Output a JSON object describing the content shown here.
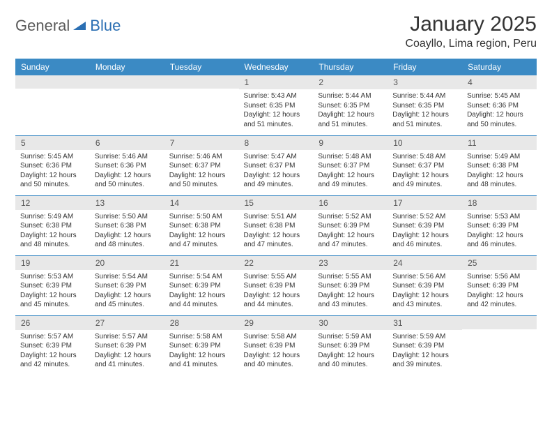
{
  "brand": {
    "word1": "General",
    "word2": "Blue"
  },
  "title": "January 2025",
  "location": "Coayllo, Lima region, Peru",
  "colors": {
    "header_bg": "#3b8ac4",
    "header_text": "#ffffff",
    "daynum_bg": "#e8e8e8",
    "row_border": "#3b8ac4",
    "brand_gray": "#5a5a5a",
    "brand_blue": "#2b6fb3"
  },
  "weekdays": [
    "Sunday",
    "Monday",
    "Tuesday",
    "Wednesday",
    "Thursday",
    "Friday",
    "Saturday"
  ],
  "weeks": [
    [
      {
        "day": "",
        "sunrise": "",
        "sunset": "",
        "daylight": ""
      },
      {
        "day": "",
        "sunrise": "",
        "sunset": "",
        "daylight": ""
      },
      {
        "day": "",
        "sunrise": "",
        "sunset": "",
        "daylight": ""
      },
      {
        "day": "1",
        "sunrise": "Sunrise: 5:43 AM",
        "sunset": "Sunset: 6:35 PM",
        "daylight": "Daylight: 12 hours and 51 minutes."
      },
      {
        "day": "2",
        "sunrise": "Sunrise: 5:44 AM",
        "sunset": "Sunset: 6:35 PM",
        "daylight": "Daylight: 12 hours and 51 minutes."
      },
      {
        "day": "3",
        "sunrise": "Sunrise: 5:44 AM",
        "sunset": "Sunset: 6:35 PM",
        "daylight": "Daylight: 12 hours and 51 minutes."
      },
      {
        "day": "4",
        "sunrise": "Sunrise: 5:45 AM",
        "sunset": "Sunset: 6:36 PM",
        "daylight": "Daylight: 12 hours and 50 minutes."
      }
    ],
    [
      {
        "day": "5",
        "sunrise": "Sunrise: 5:45 AM",
        "sunset": "Sunset: 6:36 PM",
        "daylight": "Daylight: 12 hours and 50 minutes."
      },
      {
        "day": "6",
        "sunrise": "Sunrise: 5:46 AM",
        "sunset": "Sunset: 6:36 PM",
        "daylight": "Daylight: 12 hours and 50 minutes."
      },
      {
        "day": "7",
        "sunrise": "Sunrise: 5:46 AM",
        "sunset": "Sunset: 6:37 PM",
        "daylight": "Daylight: 12 hours and 50 minutes."
      },
      {
        "day": "8",
        "sunrise": "Sunrise: 5:47 AM",
        "sunset": "Sunset: 6:37 PM",
        "daylight": "Daylight: 12 hours and 49 minutes."
      },
      {
        "day": "9",
        "sunrise": "Sunrise: 5:48 AM",
        "sunset": "Sunset: 6:37 PM",
        "daylight": "Daylight: 12 hours and 49 minutes."
      },
      {
        "day": "10",
        "sunrise": "Sunrise: 5:48 AM",
        "sunset": "Sunset: 6:37 PM",
        "daylight": "Daylight: 12 hours and 49 minutes."
      },
      {
        "day": "11",
        "sunrise": "Sunrise: 5:49 AM",
        "sunset": "Sunset: 6:38 PM",
        "daylight": "Daylight: 12 hours and 48 minutes."
      }
    ],
    [
      {
        "day": "12",
        "sunrise": "Sunrise: 5:49 AM",
        "sunset": "Sunset: 6:38 PM",
        "daylight": "Daylight: 12 hours and 48 minutes."
      },
      {
        "day": "13",
        "sunrise": "Sunrise: 5:50 AM",
        "sunset": "Sunset: 6:38 PM",
        "daylight": "Daylight: 12 hours and 48 minutes."
      },
      {
        "day": "14",
        "sunrise": "Sunrise: 5:50 AM",
        "sunset": "Sunset: 6:38 PM",
        "daylight": "Daylight: 12 hours and 47 minutes."
      },
      {
        "day": "15",
        "sunrise": "Sunrise: 5:51 AM",
        "sunset": "Sunset: 6:38 PM",
        "daylight": "Daylight: 12 hours and 47 minutes."
      },
      {
        "day": "16",
        "sunrise": "Sunrise: 5:52 AM",
        "sunset": "Sunset: 6:39 PM",
        "daylight": "Daylight: 12 hours and 47 minutes."
      },
      {
        "day": "17",
        "sunrise": "Sunrise: 5:52 AM",
        "sunset": "Sunset: 6:39 PM",
        "daylight": "Daylight: 12 hours and 46 minutes."
      },
      {
        "day": "18",
        "sunrise": "Sunrise: 5:53 AM",
        "sunset": "Sunset: 6:39 PM",
        "daylight": "Daylight: 12 hours and 46 minutes."
      }
    ],
    [
      {
        "day": "19",
        "sunrise": "Sunrise: 5:53 AM",
        "sunset": "Sunset: 6:39 PM",
        "daylight": "Daylight: 12 hours and 45 minutes."
      },
      {
        "day": "20",
        "sunrise": "Sunrise: 5:54 AM",
        "sunset": "Sunset: 6:39 PM",
        "daylight": "Daylight: 12 hours and 45 minutes."
      },
      {
        "day": "21",
        "sunrise": "Sunrise: 5:54 AM",
        "sunset": "Sunset: 6:39 PM",
        "daylight": "Daylight: 12 hours and 44 minutes."
      },
      {
        "day": "22",
        "sunrise": "Sunrise: 5:55 AM",
        "sunset": "Sunset: 6:39 PM",
        "daylight": "Daylight: 12 hours and 44 minutes."
      },
      {
        "day": "23",
        "sunrise": "Sunrise: 5:55 AM",
        "sunset": "Sunset: 6:39 PM",
        "daylight": "Daylight: 12 hours and 43 minutes."
      },
      {
        "day": "24",
        "sunrise": "Sunrise: 5:56 AM",
        "sunset": "Sunset: 6:39 PM",
        "daylight": "Daylight: 12 hours and 43 minutes."
      },
      {
        "day": "25",
        "sunrise": "Sunrise: 5:56 AM",
        "sunset": "Sunset: 6:39 PM",
        "daylight": "Daylight: 12 hours and 42 minutes."
      }
    ],
    [
      {
        "day": "26",
        "sunrise": "Sunrise: 5:57 AM",
        "sunset": "Sunset: 6:39 PM",
        "daylight": "Daylight: 12 hours and 42 minutes."
      },
      {
        "day": "27",
        "sunrise": "Sunrise: 5:57 AM",
        "sunset": "Sunset: 6:39 PM",
        "daylight": "Daylight: 12 hours and 41 minutes."
      },
      {
        "day": "28",
        "sunrise": "Sunrise: 5:58 AM",
        "sunset": "Sunset: 6:39 PM",
        "daylight": "Daylight: 12 hours and 41 minutes."
      },
      {
        "day": "29",
        "sunrise": "Sunrise: 5:58 AM",
        "sunset": "Sunset: 6:39 PM",
        "daylight": "Daylight: 12 hours and 40 minutes."
      },
      {
        "day": "30",
        "sunrise": "Sunrise: 5:59 AM",
        "sunset": "Sunset: 6:39 PM",
        "daylight": "Daylight: 12 hours and 40 minutes."
      },
      {
        "day": "31",
        "sunrise": "Sunrise: 5:59 AM",
        "sunset": "Sunset: 6:39 PM",
        "daylight": "Daylight: 12 hours and 39 minutes."
      },
      {
        "day": "",
        "sunrise": "",
        "sunset": "",
        "daylight": ""
      }
    ]
  ]
}
